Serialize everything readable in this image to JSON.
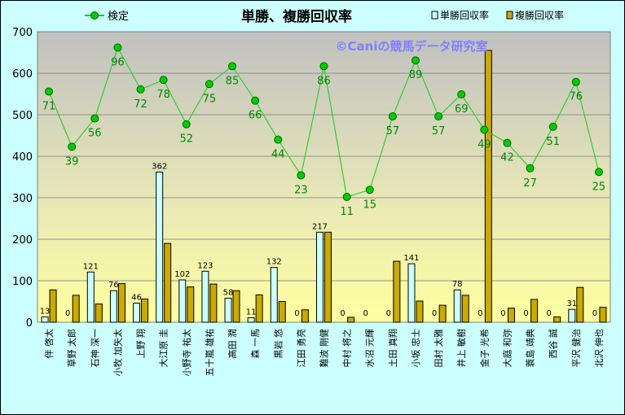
{
  "chart_data": {
    "type": "bar",
    "title": "単勝、複勝回収率",
    "watermark": "©Caniの競馬データ研究室",
    "categories": [
      "伴 啓太",
      "草野 太郎",
      "石神 深一",
      "小牧 加矢太",
      "上野 翔",
      "大江原 圭",
      "小野寺 祐太",
      "五十嵐 雄祐",
      "高田 潤",
      "森 一馬",
      "黒岩 悠",
      "江田 勇亮",
      "難波 剛健",
      "中村 将之",
      "水沼 元輝",
      "土田 真翔",
      "小坂 忠士",
      "田村 太雅",
      "井上 敏樹",
      "金子 光希",
      "大庭 和弥",
      "蓑島 靖典",
      "西谷 誠",
      "平沢 健治",
      "北沢 伸也"
    ],
    "ylim": [
      0,
      700
    ],
    "yticks": [
      0,
      100,
      200,
      300,
      400,
      500,
      600,
      700
    ],
    "grid": true,
    "legend_placement": "top",
    "series": [
      {
        "name": "検定",
        "kind": "line",
        "color": "#009900",
        "marker_color": "#00cc00",
        "values": [
          71,
          39,
          56,
          96,
          72,
          78,
          52,
          75,
          85,
          66,
          44,
          23,
          86,
          11,
          15,
          57,
          89,
          57,
          69,
          49,
          42,
          27,
          51,
          76,
          25
        ],
        "y_positions": [
          556,
          423,
          491,
          662,
          561,
          584,
          477,
          574,
          617,
          534,
          440,
          354,
          617,
          302,
          319,
          496,
          631,
          496,
          549,
          464,
          432,
          371,
          471,
          579,
          362
        ]
      },
      {
        "name": "単勝回収率",
        "kind": "bar",
        "color": "#ccffff",
        "values": [
          13,
          0,
          121,
          76,
          46,
          362,
          102,
          123,
          58,
          11,
          132,
          0,
          217,
          0,
          0,
          0,
          141,
          0,
          78,
          0,
          0,
          0,
          0,
          31,
          0
        ]
      },
      {
        "name": "複勝回収率",
        "kind": "bar",
        "color": "#ccaa00",
        "values": [
          78,
          65,
          44,
          93,
          56,
          190,
          85,
          92,
          76,
          66,
          50,
          30,
          217,
          12,
          0,
          147,
          51,
          41,
          65,
          655,
          34,
          55,
          13,
          84,
          36
        ]
      }
    ],
    "colors": {
      "background": "#ccffff",
      "plot_top": "#c0c0c0",
      "plot_bottom": "#ffffa0",
      "watermark": "#8080ff"
    }
  }
}
